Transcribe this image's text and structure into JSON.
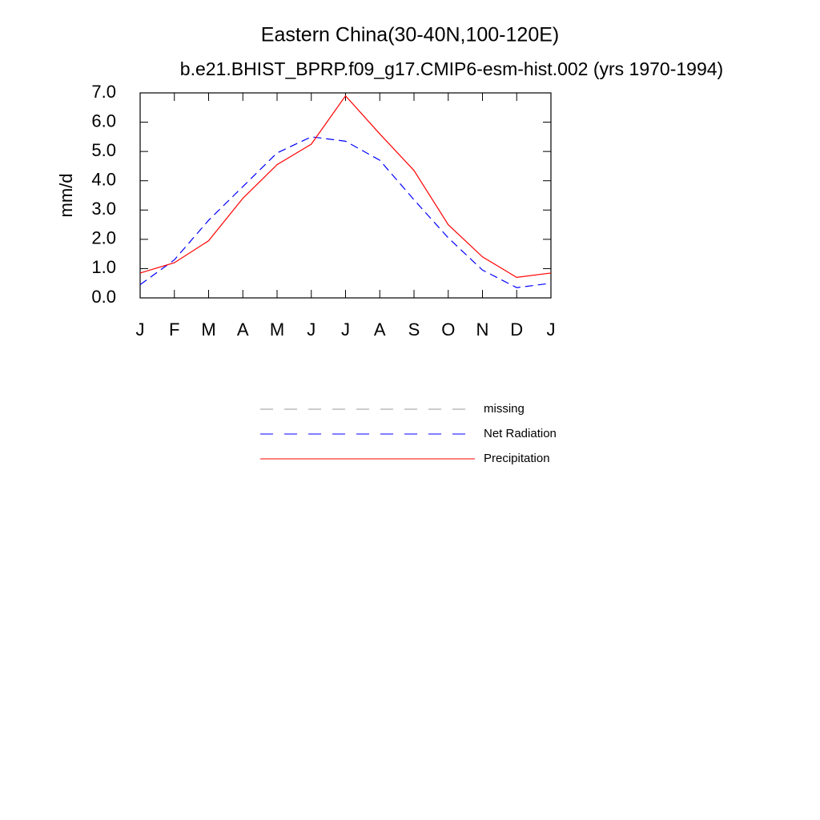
{
  "chart_data": {
    "type": "line",
    "title": "Eastern China(30-40N,100-120E)",
    "subtitle": "b.e21.BHIST_BPRP.f09_g17.CMIP6-esm-hist.002 (yrs 1970-1994)",
    "y_label": "mm/d",
    "categories": [
      "J",
      "F",
      "M",
      "A",
      "M",
      "J",
      "J",
      "A",
      "S",
      "O",
      "N",
      "D",
      "J"
    ],
    "series": [
      {
        "name": "missing",
        "color": "#999999",
        "dash": true,
        "values": [
          null,
          null,
          null,
          null,
          null,
          null,
          null,
          null,
          null,
          null,
          null,
          null,
          null
        ]
      },
      {
        "name": "Net Radiation",
        "color": "#0000ff",
        "dash": true,
        "values": [
          0.45,
          1.3,
          2.65,
          3.8,
          4.95,
          5.5,
          5.35,
          4.7,
          3.35,
          2.05,
          0.95,
          0.35,
          0.5
        ]
      },
      {
        "name": "Precipitation",
        "color": "#ff0000",
        "dash": false,
        "values": [
          0.85,
          1.2,
          1.95,
          3.4,
          4.55,
          5.25,
          6.9,
          5.6,
          4.35,
          2.5,
          1.4,
          0.7,
          0.85
        ]
      }
    ],
    "ylim": [
      0,
      7
    ],
    "yticks": [
      {
        "value": 0,
        "label": "0.0"
      },
      {
        "value": 1,
        "label": "1.0"
      },
      {
        "value": 2,
        "label": "2.0"
      },
      {
        "value": 3,
        "label": "3.0"
      },
      {
        "value": 4,
        "label": "4.0"
      },
      {
        "value": 5,
        "label": "5.0"
      },
      {
        "value": 6,
        "label": "6.0"
      },
      {
        "value": 7,
        "label": "7.0"
      }
    ]
  }
}
